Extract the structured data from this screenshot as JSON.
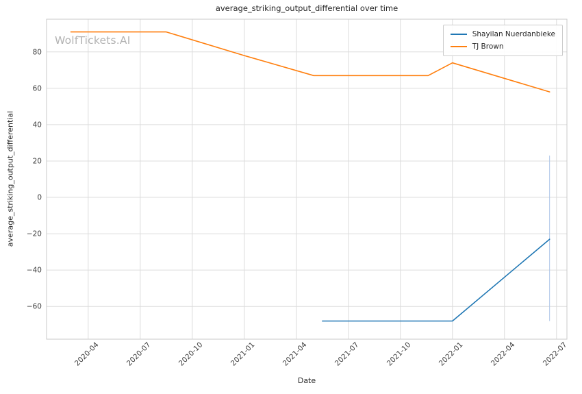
{
  "watermark": "WolfTickets.AI",
  "chart_data": {
    "type": "line",
    "title": "average_striking_output_differential over time",
    "xlabel": "Date",
    "ylabel": "average_striking_output_differential",
    "x_unit": "months since 2020-01 (m=0 is 2020-01, m=3 is 2020-04)",
    "xlim_months": [
      0.6,
      30.6
    ],
    "ylim": [
      -78,
      98
    ],
    "grid": true,
    "legend_position": "upper right",
    "x_ticks": [
      {
        "m": 3,
        "label": "2020-04"
      },
      {
        "m": 6,
        "label": "2020-07"
      },
      {
        "m": 9,
        "label": "2020-10"
      },
      {
        "m": 12,
        "label": "2021-01"
      },
      {
        "m": 15,
        "label": "2021-04"
      },
      {
        "m": 18,
        "label": "2021-07"
      },
      {
        "m": 21,
        "label": "2021-10"
      },
      {
        "m": 24,
        "label": "2022-01"
      },
      {
        "m": 27,
        "label": "2022-04"
      },
      {
        "m": 30,
        "label": "2022-07"
      }
    ],
    "y_ticks": [
      -60,
      -40,
      -20,
      0,
      20,
      40,
      60,
      80
    ],
    "colors": {
      "grid": "#dcdcdc",
      "frame": "#c9c9c9",
      "title_text": "#262626",
      "tick_text": "#3b3b3b",
      "watermark": "#b3b3b3"
    },
    "series": [
      {
        "name": "Shayilan Nuerdanbieke",
        "color": "#1f77b4",
        "points": [
          {
            "m": 16.5,
            "v": -68
          },
          {
            "m": 24,
            "v": -68
          },
          {
            "m": 29.6,
            "v": -23
          }
        ]
      },
      {
        "name": "TJ Brown",
        "color": "#ff7f0e",
        "points": [
          {
            "m": 2,
            "v": 91
          },
          {
            "m": 7.5,
            "v": 91
          },
          {
            "m": 12,
            "v": 78
          },
          {
            "m": 16,
            "v": 67
          },
          {
            "m": 22.6,
            "v": 67
          },
          {
            "m": 24,
            "v": 74
          },
          {
            "m": 29.6,
            "v": 58
          }
        ]
      }
    ],
    "vertical_line": {
      "m": 29.6,
      "y_top": 23,
      "y_bottom": -68,
      "color": "#aec7e8"
    }
  }
}
